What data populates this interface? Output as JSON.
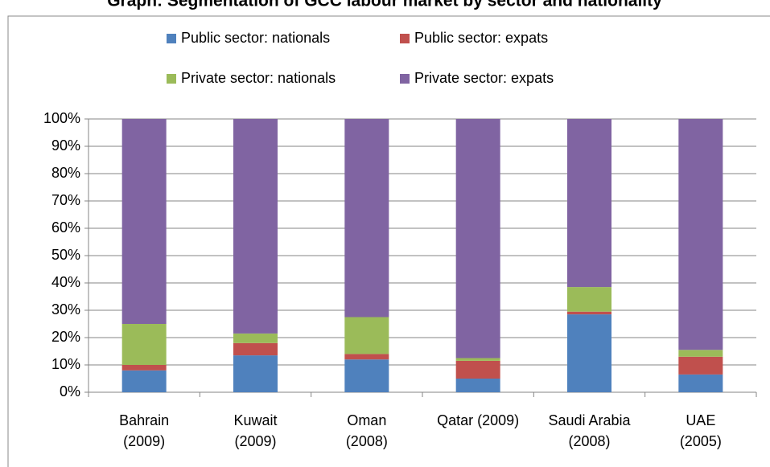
{
  "chart_data": {
    "type": "stacked_bar",
    "title": "Graph: Segmentation of GCC labour market by sector and nationality",
    "categories": [
      "Bahrain\n(2009)",
      "Kuwait\n(2009)",
      "Oman\n(2008)",
      "Qatar (2009)",
      "Saudi Arabia\n(2008)",
      "UAE\n(2005)"
    ],
    "series": [
      {
        "name": "Public sector: nationals",
        "color": "#4f81bd",
        "values": [
          8,
          13.5,
          12,
          5,
          28.5,
          6.5
        ]
      },
      {
        "name": "Public sector: expats",
        "color": "#c0504d",
        "values": [
          2,
          4.5,
          2,
          6.5,
          1,
          6.5
        ]
      },
      {
        "name": "Private sector: nationals",
        "color": "#9bbb59",
        "values": [
          15,
          3.5,
          13.5,
          1,
          9,
          2.5
        ]
      },
      {
        "name": "Private sector: expats",
        "color": "#8064a2",
        "values": [
          75,
          78.5,
          72.5,
          87.5,
          61.5,
          84.5
        ]
      }
    ],
    "ylim": [
      0,
      100
    ],
    "yticks": [
      {
        "value": 0,
        "label": "0%"
      },
      {
        "value": 10,
        "label": "10%"
      },
      {
        "value": 20,
        "label": "20%"
      },
      {
        "value": 30,
        "label": "30%"
      },
      {
        "value": 40,
        "label": "40%"
      },
      {
        "value": 50,
        "label": "50%"
      },
      {
        "value": 60,
        "label": "60%"
      },
      {
        "value": 70,
        "label": "70%"
      },
      {
        "value": 80,
        "label": "80%"
      },
      {
        "value": 90,
        "label": "90%"
      },
      {
        "value": 100,
        "label": "100%"
      }
    ],
    "grid": true,
    "legend": "top"
  }
}
